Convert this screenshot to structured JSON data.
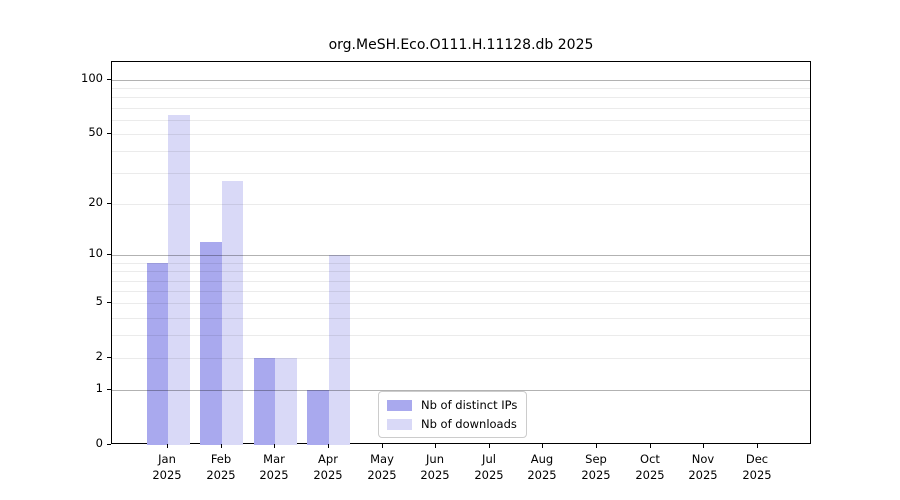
{
  "chart_data": {
    "type": "bar",
    "title": "org.MeSH.Eco.O111.H.11128.db 2025",
    "year": "2025",
    "categories": [
      "Jan",
      "Feb",
      "Mar",
      "Apr",
      "May",
      "Jun",
      "Jul",
      "Aug",
      "Sep",
      "Oct",
      "Nov",
      "Dec"
    ],
    "series": [
      {
        "name": "Nb of distinct IPs",
        "color": "#a9a9ee",
        "values": [
          9,
          12,
          2,
          1,
          0,
          0,
          0,
          0,
          0,
          0,
          0,
          0
        ]
      },
      {
        "name": "Nb of downloads",
        "color": "#d9d9f7",
        "values": [
          64,
          27,
          2,
          10,
          0,
          0,
          0,
          0,
          0,
          0,
          0,
          0
        ]
      }
    ],
    "xlabel": "",
    "ylabel": "",
    "yscale": "log1p",
    "ylim": [
      0,
      126
    ],
    "yticks": [
      0,
      1,
      2,
      5,
      10,
      20,
      50,
      100
    ],
    "major_gridlines": [
      1,
      10,
      100
    ],
    "minor_gridlines": [
      2,
      3,
      4,
      5,
      6,
      7,
      8,
      9,
      20,
      30,
      40,
      50,
      60,
      70,
      80,
      90
    ],
    "grid": true,
    "legend_position": "inside-bottom-center"
  }
}
